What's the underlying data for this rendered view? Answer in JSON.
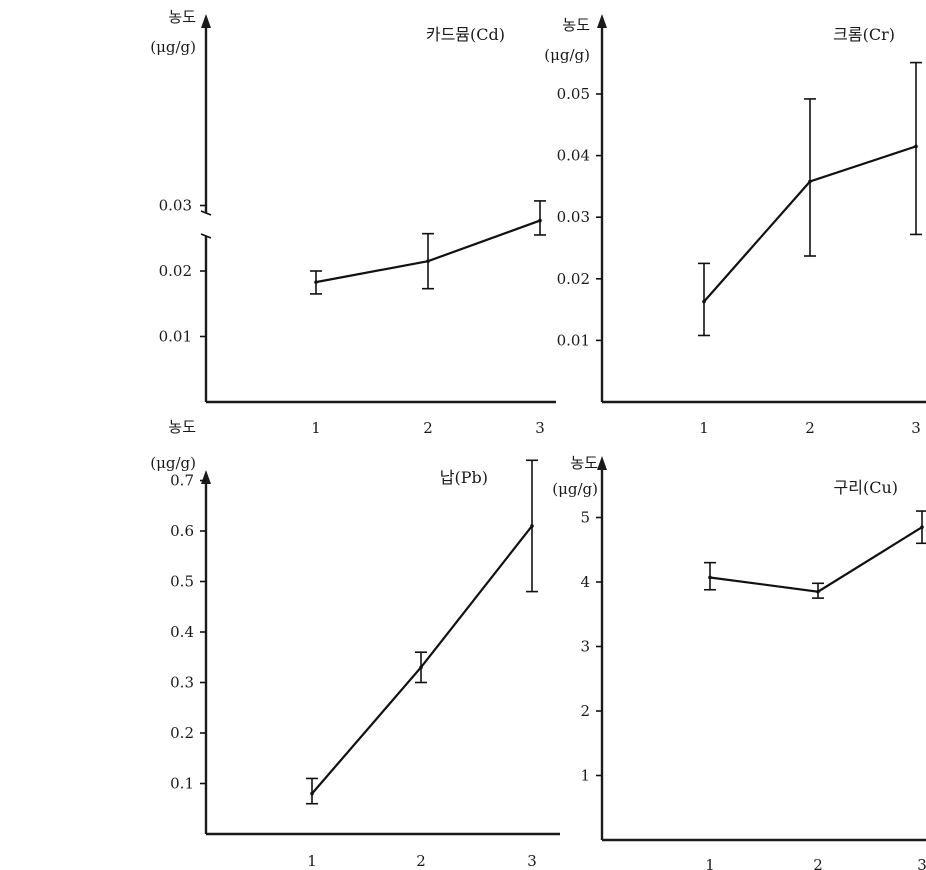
{
  "chart_data": [
    {
      "type": "line",
      "title": "카드뮴(Cd)",
      "ylabel_line1": "농도",
      "ylabel_line2": "(μg/g)",
      "x": [
        1,
        2,
        3
      ],
      "xticks": [
        "1",
        "2",
        "3"
      ],
      "yticks": [
        "0.01",
        "0.02",
        "0.03"
      ],
      "ylim": [
        0,
        0.0455
      ],
      "series": [
        {
          "values": [
            0.0183,
            0.0215,
            0.0277
          ],
          "err_low": [
            0.0165,
            0.0173,
            0.0255
          ],
          "err_high": [
            0.02,
            0.0257,
            0.0307
          ]
        }
      ],
      "grid": false
    },
    {
      "type": "line",
      "title": "크롬(Cr)",
      "ylabel_line1": "농도",
      "ylabel_line2": "(μg/g)",
      "x": [
        1,
        2,
        3
      ],
      "xticks": [
        "1",
        "2",
        "3"
      ],
      "yticks": [
        "0.01",
        "0.02",
        "0.03",
        "0.04",
        "0.05"
      ],
      "ylim": [
        0,
        0.06
      ],
      "series": [
        {
          "values": [
            0.0163,
            0.0358,
            0.0415
          ],
          "err_low": [
            0.0108,
            0.0237,
            0.0272
          ],
          "err_high": [
            0.0225,
            0.0492,
            0.0551
          ]
        }
      ],
      "grid": false
    },
    {
      "type": "line",
      "title": "납(Pb)",
      "ylabel_line1": "농도",
      "ylabel_line2": "(μg/g)",
      "x": [
        1,
        2,
        3
      ],
      "xticks": [
        "1",
        "2",
        "3"
      ],
      "yticks": [
        "0.1",
        "0.2",
        "0.3",
        "0.4",
        "0.5",
        "0.6",
        "0.7"
      ],
      "ylim": [
        0,
        0.75
      ],
      "series": [
        {
          "values": [
            0.08,
            0.33,
            0.61
          ],
          "err_low": [
            0.06,
            0.3,
            0.48
          ],
          "err_high": [
            0.11,
            0.36,
            0.74
          ]
        }
      ],
      "grid": false
    },
    {
      "type": "line",
      "title": "구리(Cu)",
      "ylabel_line1": "농도",
      "ylabel_line2": "(μg/g)",
      "x": [
        1,
        2,
        3
      ],
      "xticks": [
        "1",
        "2",
        "3"
      ],
      "yticks": [
        "1",
        "2",
        "3",
        "4",
        "5"
      ],
      "ylim": [
        0,
        5.8
      ],
      "series": [
        {
          "values": [
            4.07,
            3.85,
            4.85
          ],
          "err_low": [
            3.88,
            3.75,
            4.6
          ],
          "err_high": [
            4.3,
            3.98,
            5.1
          ]
        }
      ],
      "grid": false
    }
  ]
}
